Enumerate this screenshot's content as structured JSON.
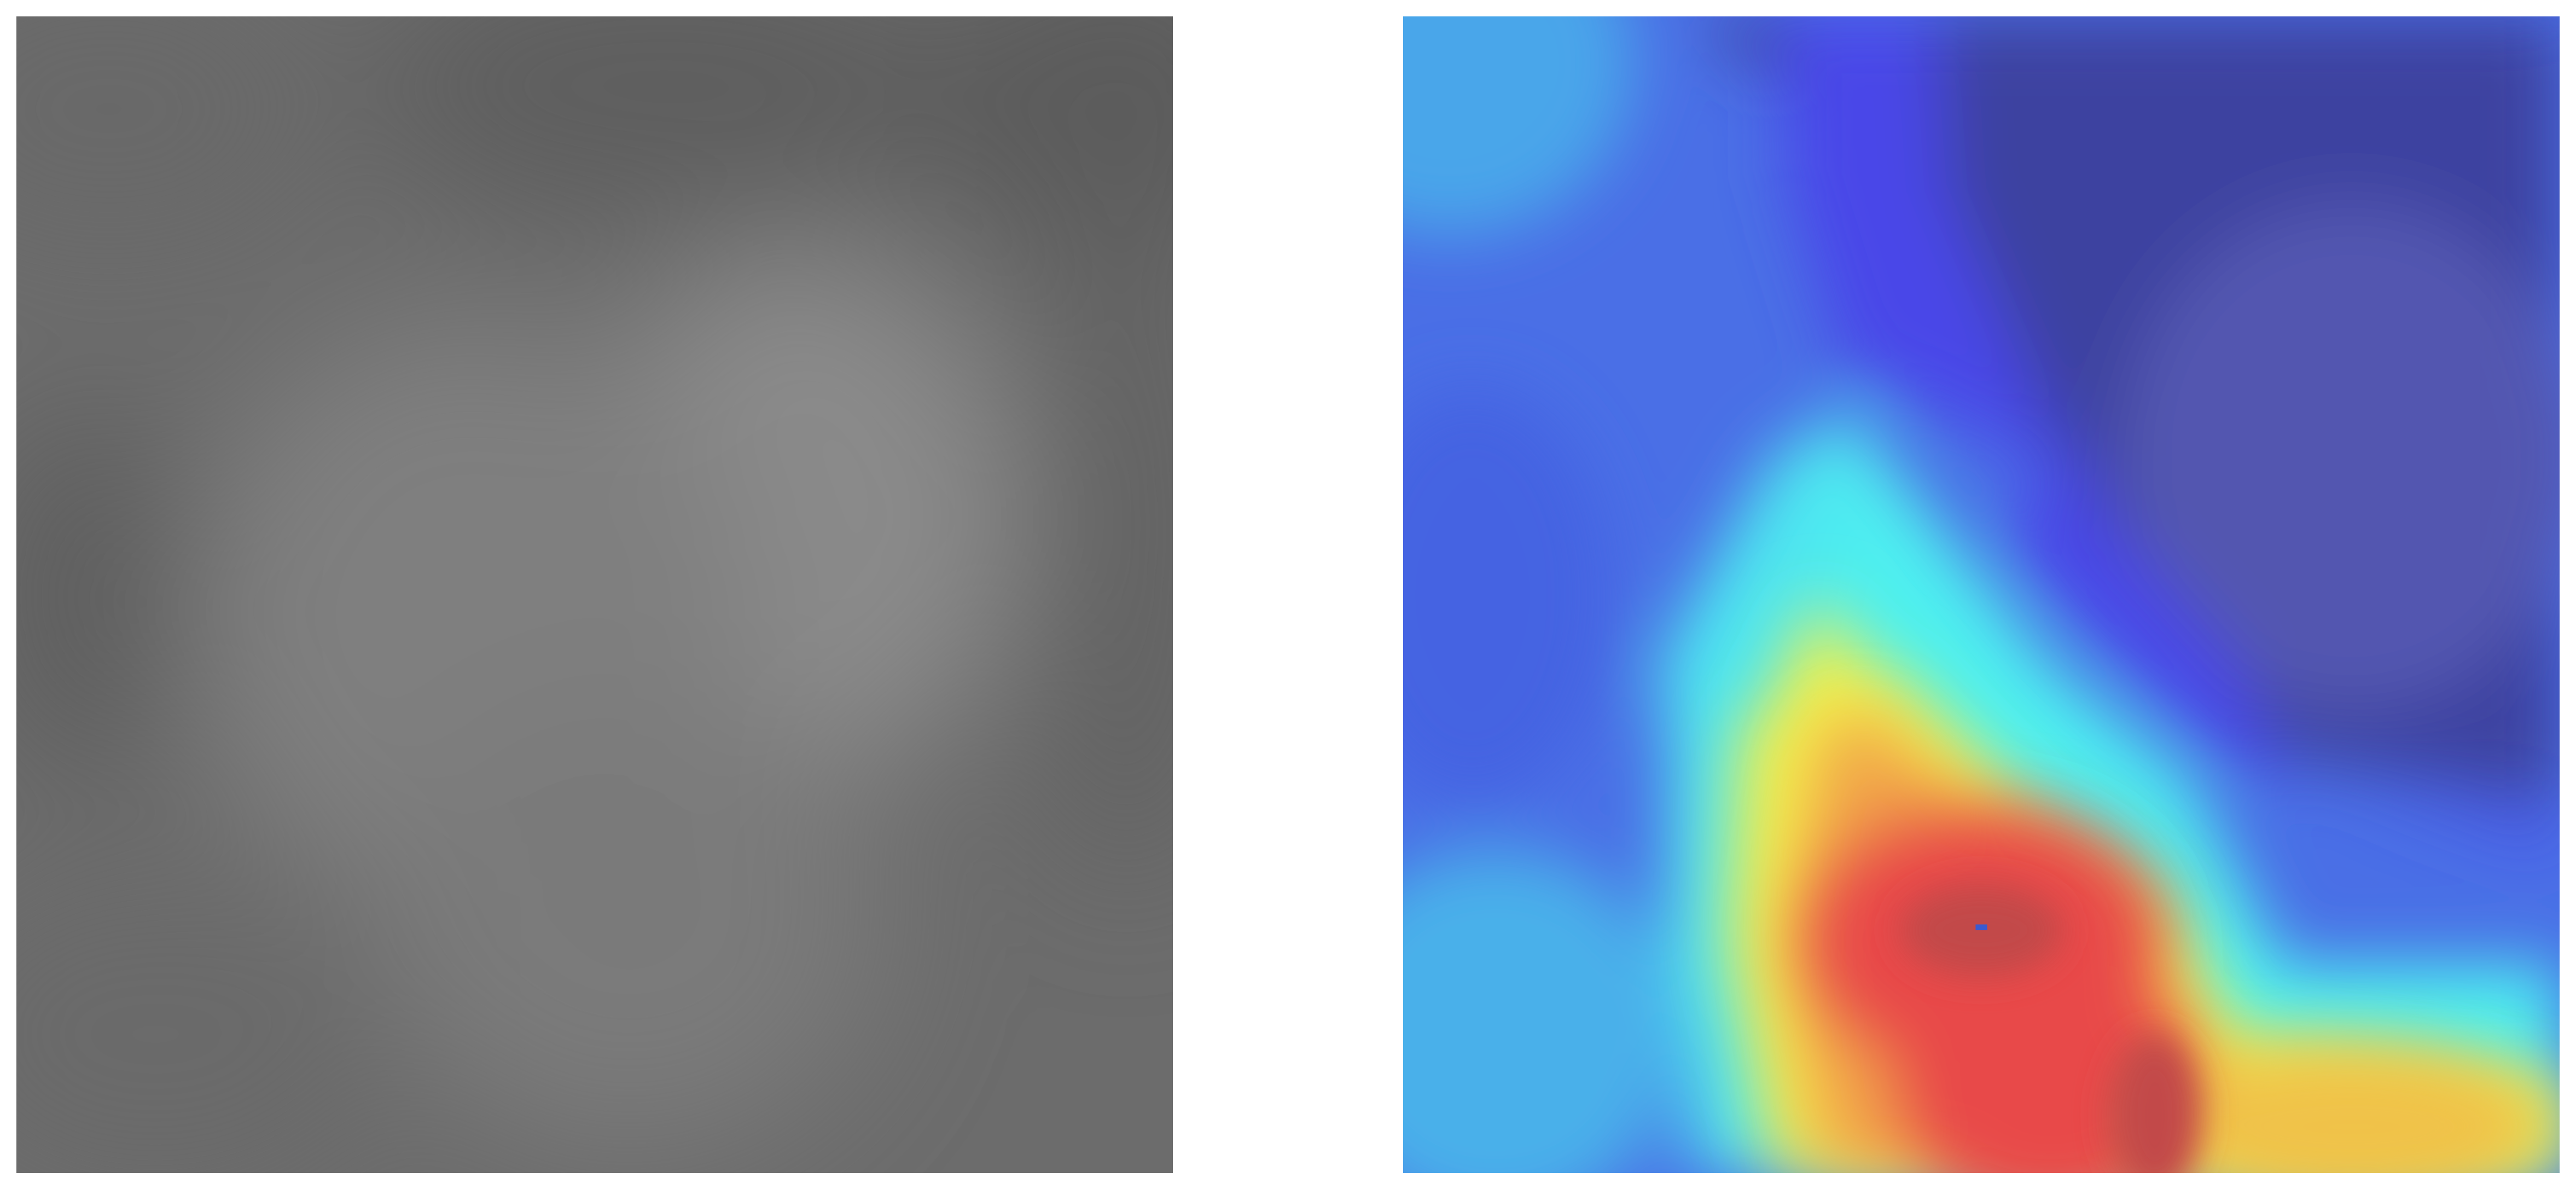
{
  "figure": {
    "panels": [
      {
        "role": "input-image",
        "style": "grayscale",
        "base_color": "#6e6e6e"
      },
      {
        "role": "activation-heatmap-overlay",
        "colormap": "jet",
        "low_color": "#3b3e8c",
        "mid_color": "#4df0f0",
        "high_color": "#e84848",
        "peak_location": "center-lower"
      }
    ]
  }
}
